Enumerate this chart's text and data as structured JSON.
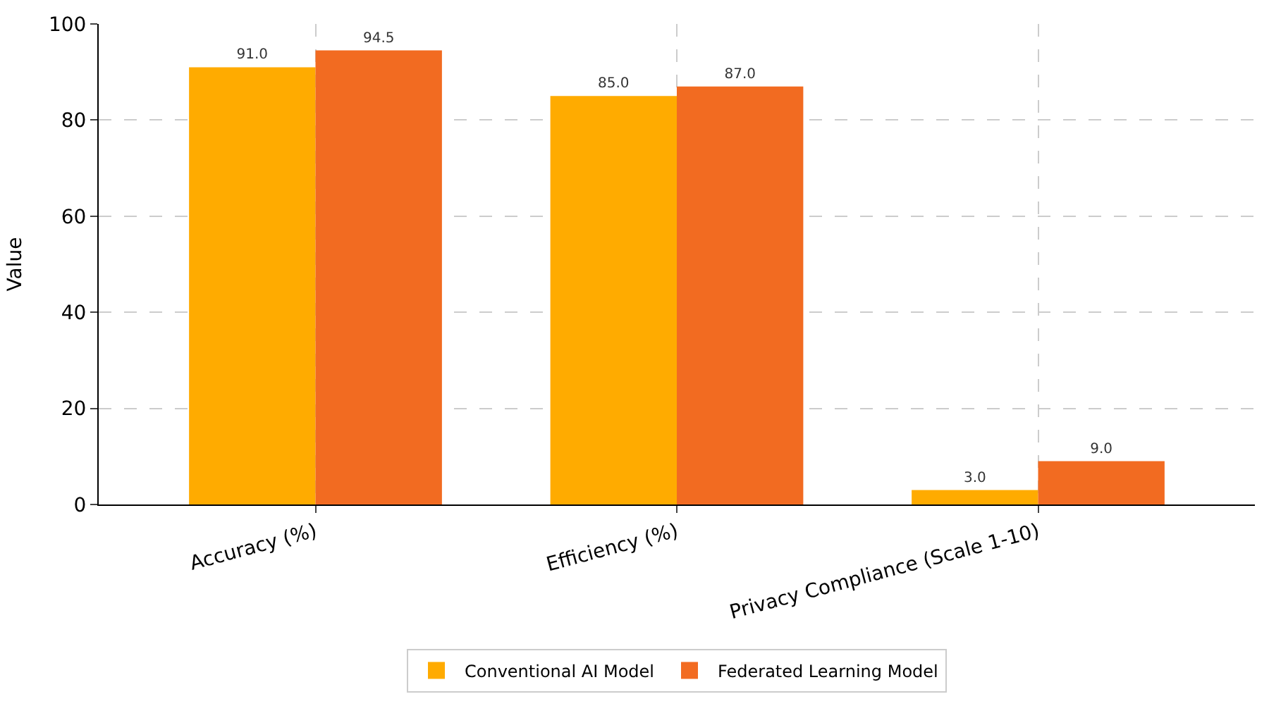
{
  "chart_data": {
    "type": "bar",
    "ylabel": "Value",
    "categories": [
      "Accuracy (%)",
      "Efficiency (%)",
      "Privacy Compliance (Scale 1-10)"
    ],
    "series": [
      {
        "name": "Conventional AI Model",
        "color": "#ffab00",
        "values": [
          91.0,
          85.0,
          3.0
        ],
        "value_labels": [
          "91.0",
          "85.0",
          "3.0"
        ]
      },
      {
        "name": "Federated Learning Model",
        "color": "#f26b21",
        "values": [
          94.5,
          87.0,
          9.0
        ],
        "value_labels": [
          "94.5",
          "87.0",
          "9.0"
        ]
      }
    ],
    "ylim": [
      0,
      100
    ],
    "yticks": [
      0,
      20,
      40,
      60,
      80,
      100
    ],
    "grid": true,
    "legend": "bottom"
  }
}
